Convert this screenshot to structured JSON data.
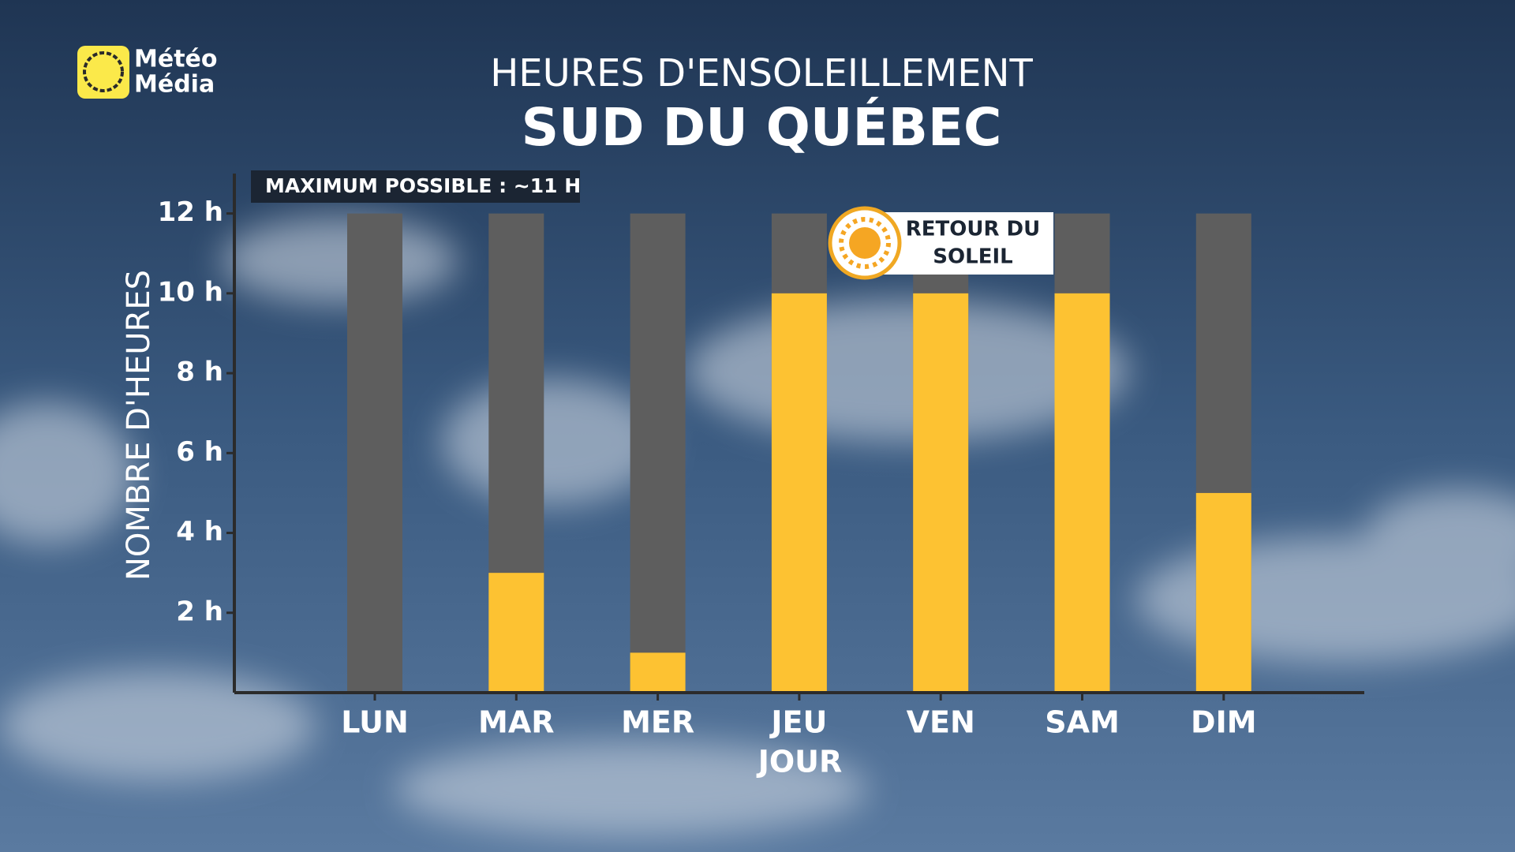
{
  "logo": {
    "lines": [
      "Météo",
      "Média"
    ]
  },
  "chart_data": {
    "type": "bar",
    "title": "HEURES D'ENSOLEILLEMENT",
    "subtitle": "SUD DU QUÉBEC",
    "y_label": "NOMBRE D'HEURES",
    "x_label": "JOUR",
    "categories": [
      "LUN",
      "MAR",
      "MER",
      "JEU",
      "VEN",
      "SAM",
      "DIM"
    ],
    "series": [
      {
        "color": "#5e5e5e",
        "values": [
          12,
          12,
          12,
          12,
          12,
          12,
          12
        ]
      },
      {
        "color": "#fdc232",
        "values": [
          0,
          3,
          1,
          10,
          10,
          10,
          5
        ]
      }
    ],
    "ylim": [
      0,
      13
    ],
    "yticks": [
      {
        "value": 2,
        "label": "2 h"
      },
      {
        "value": 4,
        "label": "4 h"
      },
      {
        "value": 6,
        "label": "6 h"
      },
      {
        "value": 8,
        "label": "8 h"
      },
      {
        "value": 10,
        "label": "10 h"
      },
      {
        "value": 12,
        "label": "12 h"
      }
    ],
    "annotations": [
      {
        "text": "MAXIMUM POSSIBLE : ~11 H"
      },
      {
        "lines": [
          "RETOUR DU",
          "SOLEIL"
        ]
      }
    ]
  }
}
